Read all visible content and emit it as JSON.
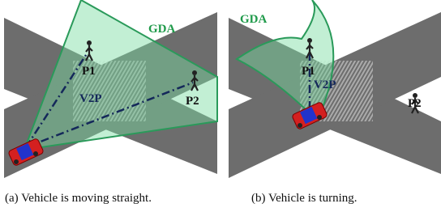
{
  "panels": [
    {
      "gda": "GDA",
      "p1": "P1",
      "p2": "P2",
      "v2p": "V2P",
      "caption": "(a) Vehicle is moving straight."
    },
    {
      "gda": "GDA",
      "p1": "P1",
      "p2": "P2",
      "v2p": "V2P",
      "caption": "(b) Vehicle is turning."
    }
  ]
}
